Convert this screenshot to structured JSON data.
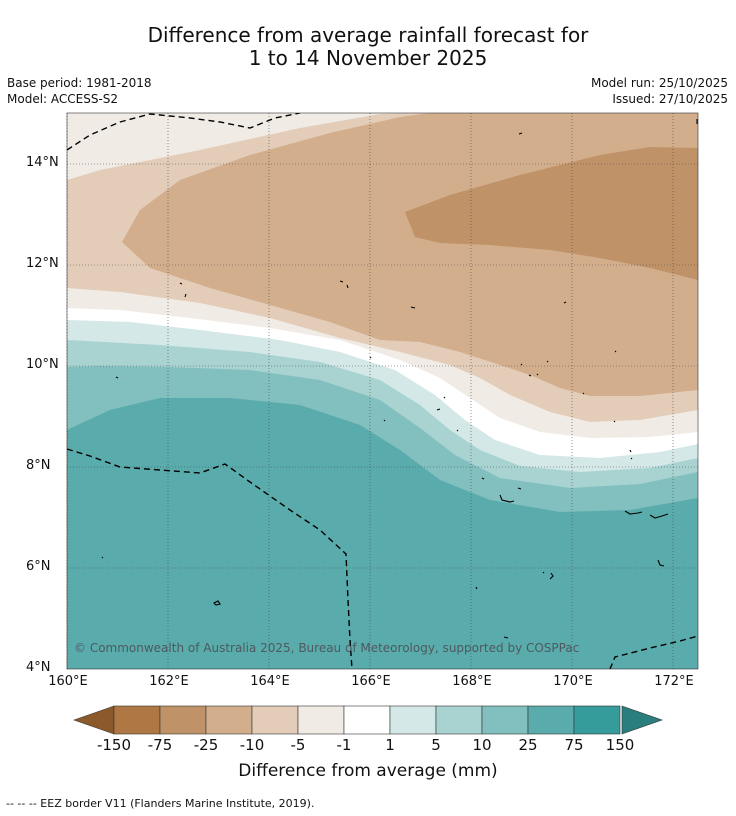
{
  "title": {
    "line1": "Difference from average rainfall forecast for",
    "line2": "1 to 14 November 2025"
  },
  "meta": {
    "base_period": "Base period: 1981-2018",
    "model": "Model: ACCESS-S2",
    "model_run": "Model run: 25/10/2025",
    "issued": "Issued: 27/10/2025"
  },
  "map": {
    "lat_labels": [
      "14°N",
      "12°N",
      "10°N",
      "8°N",
      "6°N",
      "4°N"
    ],
    "lon_labels": [
      "160°E",
      "162°E",
      "164°E",
      "166°E",
      "168°E",
      "170°E",
      "172°E"
    ],
    "copyright": "© Commonwealth of Australia 2025, Bureau of Meteorology, supported by COSPPac"
  },
  "colorbar": {
    "ticks": [
      "-150",
      "-75",
      "-25",
      "-10",
      "-5",
      "-1",
      "1",
      "5",
      "10",
      "25",
      "75",
      "150"
    ],
    "colors": [
      "#8c5a2a",
      "#ae7743",
      "#bf9268",
      "#d2ae8c",
      "#e3cdb9",
      "#f1ebe5",
      "#ffffff",
      "#d4e8e7",
      "#a8d3d1",
      "#82bfbf",
      "#5aabab",
      "#359c9b",
      "#2a7e7e"
    ],
    "title": "Difference from average (mm)"
  },
  "footer": {
    "eez_note": "--  --  -- EEZ border V11 (Flanders Marine Institute, 2019)."
  }
}
